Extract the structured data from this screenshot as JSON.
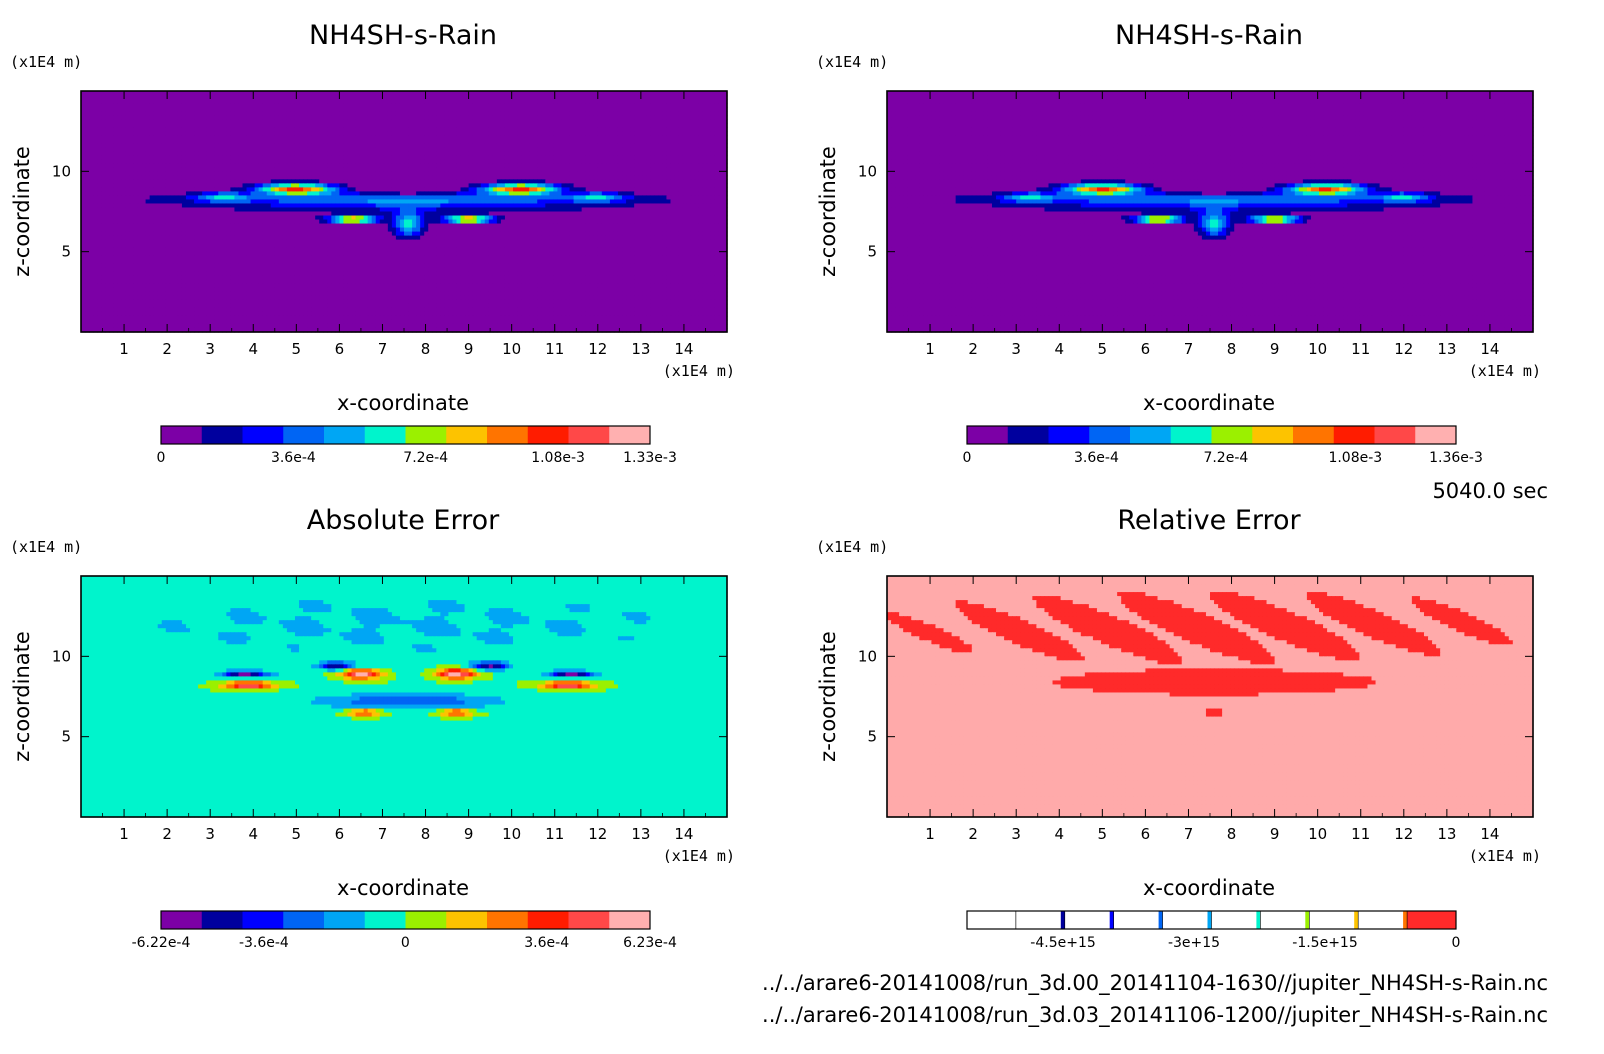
{
  "chart_data": [
    {
      "type": "heatmap",
      "title": "NH4SH-s-Rain",
      "xlabel": "x-coordinate",
      "ylabel": "z-coordinate",
      "x_unit": "(x1E4 m)",
      "y_unit": "(x1E4 m)",
      "xlim": [
        0,
        15
      ],
      "ylim": [
        0,
        15
      ],
      "x_ticks": [
        1,
        2,
        3,
        4,
        5,
        6,
        7,
        8,
        9,
        10,
        11,
        12,
        13,
        14
      ],
      "y_ticks": [
        5,
        10
      ],
      "field": "plume",
      "colorbar": {
        "levels": [
          "0",
          "3.6e-4",
          "7.2e-4",
          "1.08e-3",
          "1.33e-3"
        ],
        "level_values": [
          0,
          0.00036,
          0.00072,
          0.00108,
          0.00133
        ],
        "range": [
          0,
          0.00133
        ],
        "colors": [
          "#7c00a6",
          "#00009e",
          "#0000ff",
          "#0065f4",
          "#00a6f4",
          "#00f4cc",
          "#9bf000",
          "#fdc300",
          "#ff7400",
          "#ff1c00",
          "#ff4848",
          "#ffb0b0"
        ]
      }
    },
    {
      "type": "heatmap",
      "title": "NH4SH-s-Rain",
      "xlabel": "x-coordinate",
      "ylabel": "z-coordinate",
      "x_unit": "(x1E4 m)",
      "y_unit": "(x1E4 m)",
      "xlim": [
        0,
        15
      ],
      "ylim": [
        0,
        15
      ],
      "x_ticks": [
        1,
        2,
        3,
        4,
        5,
        6,
        7,
        8,
        9,
        10,
        11,
        12,
        13,
        14
      ],
      "y_ticks": [
        5,
        10
      ],
      "field": "plume",
      "colorbar": {
        "levels": [
          "0",
          "3.6e-4",
          "7.2e-4",
          "1.08e-3",
          "1.36e-3"
        ],
        "level_values": [
          0,
          0.00036,
          0.00072,
          0.00108,
          0.00136
        ],
        "range": [
          0,
          0.00136
        ],
        "colors": [
          "#7c00a6",
          "#00009e",
          "#0000ff",
          "#0065f4",
          "#00a6f4",
          "#00f4cc",
          "#9bf000",
          "#fdc300",
          "#ff7400",
          "#ff1c00",
          "#ff4848",
          "#ffb0b0"
        ]
      }
    },
    {
      "type": "heatmap",
      "title": "Absolute Error",
      "xlabel": "x-coordinate",
      "ylabel": "z-coordinate",
      "x_unit": "(x1E4 m)",
      "y_unit": "(x1E4 m)",
      "xlim": [
        0,
        15
      ],
      "ylim": [
        0,
        15
      ],
      "x_ticks": [
        1,
        2,
        3,
        4,
        5,
        6,
        7,
        8,
        9,
        10,
        11,
        12,
        13,
        14
      ],
      "y_ticks": [
        5,
        10
      ],
      "field": "abs_error",
      "colorbar": {
        "levels": [
          "-6.22e-4",
          "-3.6e-4",
          "0",
          "3.6e-4",
          "6.23e-4"
        ],
        "level_values": [
          -0.000622,
          -0.00036,
          0,
          0.00036,
          0.000623
        ],
        "range": [
          -0.000622,
          0.000623
        ],
        "colors": [
          "#7c00a6",
          "#00009e",
          "#0000ff",
          "#0065f4",
          "#00a6f4",
          "#00f4cc",
          "#9bf000",
          "#fdc300",
          "#ff7400",
          "#ff1c00",
          "#ff4848",
          "#ffb0b0"
        ]
      }
    },
    {
      "type": "heatmap",
      "title": "Relative Error",
      "xlabel": "x-coordinate",
      "ylabel": "z-coordinate",
      "x_unit": "(x1E4 m)",
      "y_unit": "(x1E4 m)",
      "xlim": [
        0,
        15
      ],
      "ylim": [
        0,
        15
      ],
      "x_ticks": [
        1,
        2,
        3,
        4,
        5,
        6,
        7,
        8,
        9,
        10,
        11,
        12,
        13,
        14
      ],
      "y_ticks": [
        5,
        10
      ],
      "field": "rel_error",
      "colorbar": {
        "levels": [
          "-4.5e+15",
          "-3e+15",
          "-1.5e+15",
          "0"
        ],
        "level_values": [
          -4500000000000000.0,
          -3000000000000000.0,
          -1500000000000000.0,
          0
        ],
        "range": [
          -5600000000000000.0,
          0
        ],
        "cell_count": 10,
        "colors": [
          "#7c00a6",
          "#00009e",
          "#0000ff",
          "#0065f4",
          "#00a6f4",
          "#00f4cc",
          "#9bf000",
          "#fdc300",
          "#ff7400",
          "#ff1c00",
          "#ff2a2a",
          "#ffaaaa"
        ]
      }
    }
  ],
  "time_label": "5040.0 sec",
  "files": [
    "../../arare6-20141008/run_3d.00_20141104-1630//jupiter_NH4SH-s-Rain.nc",
    "../../arare6-20141008/run_3d.03_20141106-1200//jupiter_NH4SH-s-Rain.nc"
  ]
}
